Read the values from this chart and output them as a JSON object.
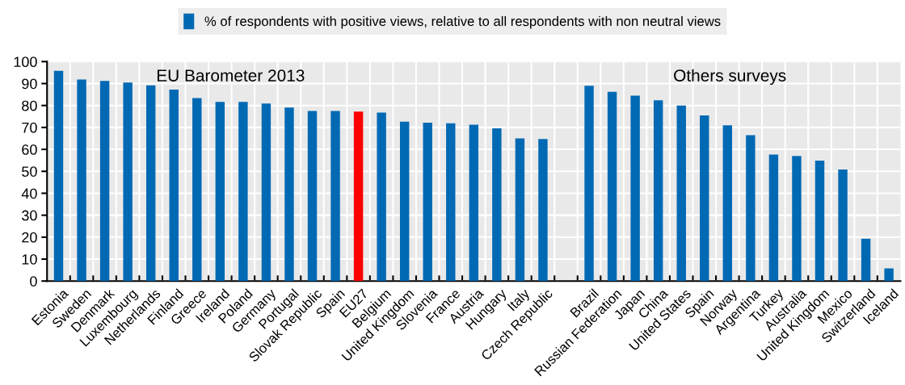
{
  "chart_data": {
    "type": "bar",
    "categories": [
      "Estonia",
      "Sweden",
      "Denmark",
      "Luxembourg",
      "Netherlands",
      "Finland",
      "Greece",
      "Ireland",
      "Poland",
      "Germany",
      "Portugal",
      "Slovak Republic",
      "Spain",
      "EU27",
      "Belgium",
      "United Kingdom",
      "Slovenia",
      "France",
      "Austria",
      "Hungary",
      "Italy",
      "Czech Republic",
      null,
      "Brazil",
      "Russian Federation",
      "Japan",
      "China",
      "United States",
      "Spain",
      "Norway",
      "Argentina",
      "Turkey",
      "Australia",
      "United Kingdom",
      "Mexico",
      "Switzerland",
      "Iceland"
    ],
    "series": [
      {
        "name": "% of respondents with positive views, relative to all respondents with non neutral views",
        "color": "#0069b4",
        "colors": [
          "#0069b4",
          "#0069b4",
          "#0069b4",
          "#0069b4",
          "#0069b4",
          "#0069b4",
          "#0069b4",
          "#0069b4",
          "#0069b4",
          "#0069b4",
          "#0069b4",
          "#0069b4",
          "#0069b4",
          "#ff0000",
          "#0069b4",
          "#0069b4",
          "#0069b4",
          "#0069b4",
          "#0069b4",
          "#0069b4",
          "#0069b4",
          "#0069b4",
          null,
          "#0069b4",
          "#0069b4",
          "#0069b4",
          "#0069b4",
          "#0069b4",
          "#0069b4",
          "#0069b4",
          "#0069b4",
          "#0069b4",
          "#0069b4",
          "#0069b4",
          "#0069b4",
          "#0069b4",
          "#0069b4"
        ],
        "values": [
          95.8,
          91.8,
          91.2,
          90.5,
          89.2,
          87.2,
          83.4,
          81.6,
          81.6,
          80.9,
          79.1,
          77.5,
          77.5,
          77.2,
          76.8,
          72.6,
          72.2,
          71.9,
          71.2,
          69.6,
          65.0,
          64.7,
          null,
          89.0,
          86.2,
          84.5,
          82.4,
          80.0,
          75.5,
          71.0,
          66.5,
          57.6,
          57.0,
          54.9,
          50.8,
          19.3,
          5.8
        ]
      }
    ],
    "ylim": [
      0,
      100
    ],
    "yticks": [
      0,
      10,
      20,
      30,
      40,
      50,
      60,
      70,
      80,
      90,
      100
    ],
    "annotations": [
      "EU Barometer 2013",
      "Others surveys"
    ],
    "grid": true,
    "legend": "top"
  }
}
